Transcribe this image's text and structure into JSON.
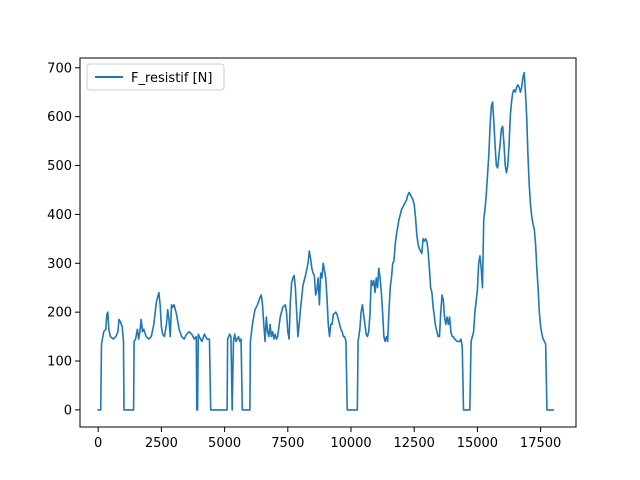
{
  "chart_data": {
    "type": "line",
    "title": "",
    "xlabel": "",
    "ylabel": "",
    "xlim": [
      -720,
      18900
    ],
    "ylim": [
      -35,
      720
    ],
    "x_ticks": [
      0,
      2500,
      5000,
      7500,
      10000,
      12500,
      15000,
      17500
    ],
    "x_tick_labels": [
      "0",
      "2500",
      "5000",
      "7500",
      "10000",
      "12500",
      "15000",
      "17500"
    ],
    "y_ticks": [
      0,
      100,
      200,
      300,
      400,
      500,
      600,
      700
    ],
    "y_tick_labels": [
      "0",
      "100",
      "200",
      "300",
      "400",
      "500",
      "600",
      "700"
    ],
    "grid": false,
    "legend_position": "upper-left",
    "series": [
      {
        "name": "F_resistif [N]",
        "color": "#1f77b4",
        "points": [
          [
            0,
            0
          ],
          [
            100,
            0
          ],
          [
            130,
            135
          ],
          [
            220,
            160
          ],
          [
            300,
            165
          ],
          [
            340,
            195
          ],
          [
            380,
            200
          ],
          [
            420,
            165
          ],
          [
            480,
            150
          ],
          [
            600,
            145
          ],
          [
            700,
            150
          ],
          [
            780,
            160
          ],
          [
            820,
            185
          ],
          [
            880,
            180
          ],
          [
            950,
            170
          ],
          [
            1000,
            140
          ],
          [
            1020,
            0
          ],
          [
            1200,
            0
          ],
          [
            1400,
            0
          ],
          [
            1420,
            140
          ],
          [
            1480,
            145
          ],
          [
            1550,
            165
          ],
          [
            1600,
            145
          ],
          [
            1650,
            160
          ],
          [
            1700,
            185
          ],
          [
            1750,
            160
          ],
          [
            1800,
            165
          ],
          [
            1900,
            150
          ],
          [
            2000,
            145
          ],
          [
            2100,
            150
          ],
          [
            2200,
            175
          ],
          [
            2300,
            220
          ],
          [
            2400,
            240
          ],
          [
            2450,
            215
          ],
          [
            2500,
            170
          ],
          [
            2550,
            155
          ],
          [
            2620,
            150
          ],
          [
            2700,
            175
          ],
          [
            2750,
            205
          ],
          [
            2800,
            185
          ],
          [
            2850,
            150
          ],
          [
            2900,
            215
          ],
          [
            2950,
            210
          ],
          [
            3000,
            215
          ],
          [
            3100,
            195
          ],
          [
            3200,
            165
          ],
          [
            3300,
            150
          ],
          [
            3400,
            145
          ],
          [
            3500,
            155
          ],
          [
            3600,
            160
          ],
          [
            3700,
            155
          ],
          [
            3800,
            145
          ],
          [
            3880,
            150
          ],
          [
            3900,
            0
          ],
          [
            3930,
            0
          ],
          [
            3960,
            155
          ],
          [
            4000,
            150
          ],
          [
            4050,
            145
          ],
          [
            4100,
            140
          ],
          [
            4200,
            155
          ],
          [
            4300,
            145
          ],
          [
            4400,
            145
          ],
          [
            4450,
            0
          ],
          [
            4600,
            0
          ],
          [
            4800,
            0
          ],
          [
            5000,
            0
          ],
          [
            5100,
            0
          ],
          [
            5120,
            145
          ],
          [
            5200,
            155
          ],
          [
            5250,
            150
          ],
          [
            5300,
            0
          ],
          [
            5350,
            140
          ],
          [
            5400,
            155
          ],
          [
            5450,
            140
          ],
          [
            5500,
            145
          ],
          [
            5550,
            150
          ],
          [
            5600,
            140
          ],
          [
            5650,
            145
          ],
          [
            5700,
            0
          ],
          [
            5800,
            0
          ],
          [
            6000,
            0
          ],
          [
            6020,
            140
          ],
          [
            6100,
            175
          ],
          [
            6200,
            205
          ],
          [
            6300,
            215
          ],
          [
            6400,
            230
          ],
          [
            6450,
            235
          ],
          [
            6500,
            215
          ],
          [
            6550,
            175
          ],
          [
            6600,
            140
          ],
          [
            6650,
            190
          ],
          [
            6700,
            160
          ],
          [
            6750,
            150
          ],
          [
            6800,
            175
          ],
          [
            6850,
            150
          ],
          [
            6900,
            160
          ],
          [
            6950,
            145
          ],
          [
            7000,
            155
          ],
          [
            7050,
            145
          ],
          [
            7100,
            150
          ],
          [
            7200,
            190
          ],
          [
            7300,
            210
          ],
          [
            7400,
            215
          ],
          [
            7450,
            200
          ],
          [
            7500,
            160
          ],
          [
            7550,
            145
          ],
          [
            7600,
            220
          ],
          [
            7650,
            260
          ],
          [
            7700,
            270
          ],
          [
            7750,
            275
          ],
          [
            7800,
            250
          ],
          [
            7850,
            200
          ],
          [
            7900,
            150
          ],
          [
            7950,
            175
          ],
          [
            8000,
            205
          ],
          [
            8050,
            230
          ],
          [
            8100,
            255
          ],
          [
            8200,
            275
          ],
          [
            8300,
            300
          ],
          [
            8350,
            325
          ],
          [
            8400,
            310
          ],
          [
            8450,
            290
          ],
          [
            8500,
            280
          ],
          [
            8550,
            275
          ],
          [
            8600,
            235
          ],
          [
            8650,
            245
          ],
          [
            8700,
            270
          ],
          [
            8750,
            215
          ],
          [
            8800,
            280
          ],
          [
            8850,
            270
          ],
          [
            8900,
            300
          ],
          [
            9000,
            270
          ],
          [
            9050,
            230
          ],
          [
            9100,
            175
          ],
          [
            9150,
            150
          ],
          [
            9200,
            175
          ],
          [
            9250,
            175
          ],
          [
            9300,
            195
          ],
          [
            9400,
            200
          ],
          [
            9450,
            195
          ],
          [
            9500,
            185
          ],
          [
            9550,
            175
          ],
          [
            9600,
            165
          ],
          [
            9650,
            160
          ],
          [
            9700,
            150
          ],
          [
            9750,
            150
          ],
          [
            9800,
            140
          ],
          [
            9850,
            0
          ],
          [
            10000,
            0
          ],
          [
            10200,
            0
          ],
          [
            10250,
            0
          ],
          [
            10280,
            140
          ],
          [
            10350,
            165
          ],
          [
            10400,
            200
          ],
          [
            10450,
            215
          ],
          [
            10500,
            195
          ],
          [
            10550,
            175
          ],
          [
            10600,
            155
          ],
          [
            10650,
            150
          ],
          [
            10700,
            160
          ],
          [
            10750,
            195
          ],
          [
            10800,
            265
          ],
          [
            10850,
            255
          ],
          [
            10900,
            265
          ],
          [
            10950,
            240
          ],
          [
            11000,
            270
          ],
          [
            11050,
            250
          ],
          [
            11100,
            290
          ],
          [
            11150,
            270
          ],
          [
            11200,
            240
          ],
          [
            11250,
            200
          ],
          [
            11300,
            150
          ],
          [
            11350,
            140
          ],
          [
            11400,
            150
          ],
          [
            11450,
            140
          ],
          [
            11500,
            200
          ],
          [
            11550,
            250
          ],
          [
            11600,
            270
          ],
          [
            11650,
            300
          ],
          [
            11700,
            305
          ],
          [
            11750,
            340
          ],
          [
            11800,
            360
          ],
          [
            11900,
            390
          ],
          [
            12000,
            410
          ],
          [
            12100,
            420
          ],
          [
            12150,
            425
          ],
          [
            12200,
            430
          ],
          [
            12250,
            440
          ],
          [
            12300,
            445
          ],
          [
            12350,
            440
          ],
          [
            12400,
            435
          ],
          [
            12450,
            430
          ],
          [
            12500,
            420
          ],
          [
            12550,
            395
          ],
          [
            12600,
            360
          ],
          [
            12650,
            340
          ],
          [
            12700,
            330
          ],
          [
            12750,
            325
          ],
          [
            12800,
            320
          ],
          [
            12850,
            350
          ],
          [
            12900,
            345
          ],
          [
            12950,
            350
          ],
          [
            13000,
            345
          ],
          [
            13050,
            325
          ],
          [
            13100,
            290
          ],
          [
            13150,
            250
          ],
          [
            13200,
            240
          ],
          [
            13250,
            210
          ],
          [
            13300,
            190
          ],
          [
            13350,
            170
          ],
          [
            13400,
            160
          ],
          [
            13450,
            150
          ],
          [
            13500,
            150
          ],
          [
            13550,
            200
          ],
          [
            13600,
            235
          ],
          [
            13650,
            225
          ],
          [
            13700,
            190
          ],
          [
            13750,
            175
          ],
          [
            13800,
            190
          ],
          [
            13850,
            175
          ],
          [
            13900,
            190
          ],
          [
            13950,
            160
          ],
          [
            14000,
            150
          ],
          [
            14050,
            150
          ],
          [
            14100,
            145
          ],
          [
            14200,
            140
          ],
          [
            14300,
            140
          ],
          [
            14350,
            145
          ],
          [
            14400,
            130
          ],
          [
            14450,
            0
          ],
          [
            14550,
            0
          ],
          [
            14700,
            0
          ],
          [
            14750,
            140
          ],
          [
            14800,
            150
          ],
          [
            14850,
            160
          ],
          [
            14900,
            200
          ],
          [
            15000,
            245
          ],
          [
            15050,
            300
          ],
          [
            15100,
            315
          ],
          [
            15150,
            290
          ],
          [
            15200,
            250
          ],
          [
            15250,
            390
          ],
          [
            15300,
            410
          ],
          [
            15350,
            440
          ],
          [
            15400,
            480
          ],
          [
            15450,
            520
          ],
          [
            15500,
            580
          ],
          [
            15550,
            620
          ],
          [
            15600,
            630
          ],
          [
            15650,
            590
          ],
          [
            15700,
            540
          ],
          [
            15750,
            500
          ],
          [
            15800,
            495
          ],
          [
            15850,
            520
          ],
          [
            15900,
            545
          ],
          [
            15950,
            575
          ],
          [
            16000,
            580
          ],
          [
            16050,
            545
          ],
          [
            16100,
            500
          ],
          [
            16150,
            485
          ],
          [
            16200,
            500
          ],
          [
            16250,
            540
          ],
          [
            16300,
            600
          ],
          [
            16350,
            630
          ],
          [
            16400,
            650
          ],
          [
            16450,
            655
          ],
          [
            16500,
            650
          ],
          [
            16550,
            660
          ],
          [
            16600,
            665
          ],
          [
            16650,
            660
          ],
          [
            16700,
            650
          ],
          [
            16750,
            660
          ],
          [
            16800,
            680
          ],
          [
            16850,
            690
          ],
          [
            16900,
            650
          ],
          [
            16950,
            600
          ],
          [
            17000,
            520
          ],
          [
            17050,
            460
          ],
          [
            17100,
            420
          ],
          [
            17150,
            395
          ],
          [
            17200,
            380
          ],
          [
            17250,
            370
          ],
          [
            17300,
            340
          ],
          [
            17350,
            290
          ],
          [
            17400,
            250
          ],
          [
            17450,
            200
          ],
          [
            17500,
            170
          ],
          [
            17550,
            155
          ],
          [
            17600,
            145
          ],
          [
            17650,
            140
          ],
          [
            17700,
            135
          ],
          [
            17750,
            0
          ],
          [
            17800,
            0
          ],
          [
            18000,
            0
          ]
        ]
      }
    ]
  }
}
